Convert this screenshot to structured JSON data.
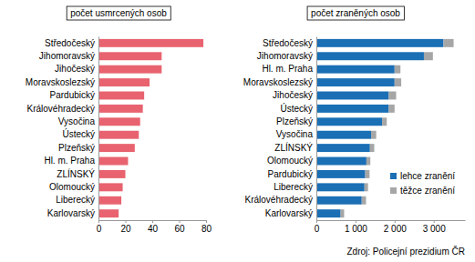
{
  "chart_data": [
    {
      "type": "bar",
      "orientation": "horizontal",
      "title": "počet usmrcených osob",
      "categories": [
        "Středočeský",
        "Jihomoravský",
        "Jihočeský",
        "Moravskoslezský",
        "Pardubický",
        "Královéhradecký",
        "Vysočina",
        "Ústecký",
        "Plzeňský",
        "Hl. m. Praha",
        "ZLÍNSKÝ",
        "Olomoucký",
        "Liberecký",
        "Karlovarský"
      ],
      "values": [
        78,
        47,
        47,
        38,
        34,
        33,
        31,
        30,
        27,
        22,
        20,
        18,
        17,
        15
      ],
      "color": "#e8636f",
      "xlim": [
        0,
        80
      ],
      "xticks": [
        0,
        20,
        40,
        60,
        80
      ],
      "grid": false
    },
    {
      "type": "bar",
      "orientation": "horizontal",
      "stacked": true,
      "title": "počet zraněných osob",
      "categories": [
        "Středočeský",
        "Jihomoravský",
        "Hl. m. Praha",
        "Moravskoslezský",
        "Jihočeský",
        "Ústecký",
        "Plzeňský",
        "Vysočina",
        "ZLÍNSKÝ",
        "Olomoucký",
        "Pardubický",
        "Liberecký",
        "Královéhradecký",
        "Karlovarský"
      ],
      "series": [
        {
          "name": "lehce zranění",
          "color": "#1a6fb5",
          "values": [
            3250,
            2750,
            2000,
            2000,
            1850,
            1850,
            1680,
            1400,
            1370,
            1280,
            1250,
            1230,
            1160,
            620
          ]
        },
        {
          "name": "těžce zranění",
          "color": "#a6a6a6",
          "values": [
            260,
            230,
            150,
            170,
            190,
            150,
            120,
            130,
            110,
            100,
            110,
            90,
            110,
            90
          ]
        }
      ],
      "xlim": [
        0,
        3800
      ],
      "xticks": [
        0,
        {
          "value": 1000,
          "label": "1 000"
        },
        {
          "value": 2000,
          "label": "2 000"
        },
        {
          "value": 3000,
          "label": "3 000"
        }
      ],
      "grid": false,
      "legend": "lower right",
      "annotations": [
        "Zdroj: Policejní prezidium ČR"
      ]
    }
  ]
}
